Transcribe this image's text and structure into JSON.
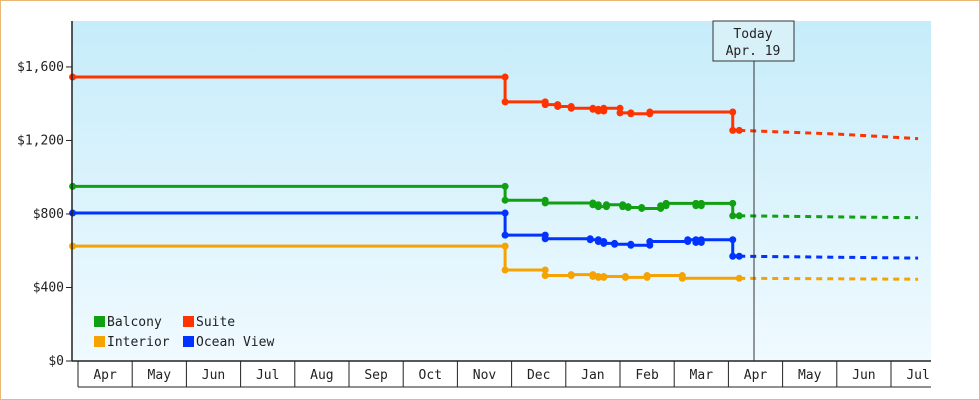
{
  "chart_data": {
    "type": "line",
    "title": "",
    "xlabel": "",
    "ylabel": "",
    "ylim": [
      0,
      1850
    ],
    "yticks": [
      0,
      400,
      800,
      1200,
      1600
    ],
    "ytick_labels": [
      "$0",
      "$400",
      "$800",
      "$1,200",
      "$1,600"
    ],
    "x_months": [
      "Apr",
      "May",
      "Jun",
      "Jul",
      "Aug",
      "Sep",
      "Oct",
      "Nov",
      "Dec",
      "Jan",
      "Feb",
      "Mar",
      "Apr",
      "May",
      "Jun",
      "Jul"
    ],
    "x_axis_unit": "months since first Apr (0 = start of Apr)",
    "today": {
      "line1": "Today",
      "line2": "Apr. 19",
      "x": 12.2
    },
    "legend_position": "bottom-left",
    "grid": false,
    "series": [
      {
        "name": "Balcony",
        "color": "#11a011",
        "points": [
          [
            -0.1,
            950
          ],
          [
            7.85,
            950
          ],
          [
            7.88,
            875
          ],
          [
            8.6,
            875
          ],
          [
            8.62,
            860
          ],
          [
            9.5,
            850
          ],
          [
            9.6,
            840
          ],
          [
            9.75,
            850
          ],
          [
            10.05,
            840
          ],
          [
            10.15,
            835
          ],
          [
            10.4,
            830
          ],
          [
            10.7,
            830
          ],
          [
            10.75,
            845
          ],
          [
            10.85,
            858
          ],
          [
            11.35,
            858
          ],
          [
            11.4,
            845
          ],
          [
            11.5,
            858
          ],
          [
            12.05,
            858
          ],
          [
            12.08,
            790
          ],
          [
            12.2,
            790
          ]
        ],
        "forecast": [
          [
            12.2,
            790
          ],
          [
            14.7,
            782
          ],
          [
            15.5,
            780
          ]
        ]
      },
      {
        "name": "Suite",
        "color": "#ff3300",
        "points": [
          [
            -0.1,
            1545
          ],
          [
            7.85,
            1545
          ],
          [
            7.88,
            1410
          ],
          [
            8.6,
            1410
          ],
          [
            8.62,
            1395
          ],
          [
            8.85,
            1385
          ],
          [
            9.1,
            1375
          ],
          [
            9.5,
            1370
          ],
          [
            9.6,
            1360
          ],
          [
            9.7,
            1375
          ],
          [
            9.95,
            1375
          ],
          [
            10.0,
            1350
          ],
          [
            10.2,
            1345
          ],
          [
            10.5,
            1345
          ],
          [
            10.55,
            1355
          ],
          [
            12.05,
            1355
          ],
          [
            12.08,
            1255
          ],
          [
            12.2,
            1255
          ]
        ],
        "forecast": [
          [
            12.2,
            1255
          ],
          [
            14.0,
            1235
          ],
          [
            15.5,
            1210
          ]
        ]
      },
      {
        "name": "Interior",
        "color": "#f5a300",
        "points": [
          [
            -0.1,
            625
          ],
          [
            7.85,
            625
          ],
          [
            7.88,
            495
          ],
          [
            8.6,
            495
          ],
          [
            8.62,
            465
          ],
          [
            8.9,
            465
          ],
          [
            9.1,
            470
          ],
          [
            9.5,
            460
          ],
          [
            9.6,
            455
          ],
          [
            9.7,
            460
          ],
          [
            9.95,
            460
          ],
          [
            10.1,
            455
          ],
          [
            10.45,
            455
          ],
          [
            10.5,
            465
          ],
          [
            11.1,
            465
          ],
          [
            11.15,
            450
          ],
          [
            12.05,
            450
          ],
          [
            12.2,
            450
          ]
        ],
        "forecast": [
          [
            12.2,
            450
          ],
          [
            15.5,
            445
          ]
        ]
      },
      {
        "name": "Ocean View",
        "color": "#0033ff",
        "points": [
          [
            -0.1,
            805
          ],
          [
            7.85,
            805
          ],
          [
            7.88,
            685
          ],
          [
            8.6,
            685
          ],
          [
            8.62,
            665
          ],
          [
            9.45,
            660
          ],
          [
            9.6,
            650
          ],
          [
            9.7,
            640
          ],
          [
            9.9,
            635
          ],
          [
            10.1,
            635
          ],
          [
            10.2,
            630
          ],
          [
            10.45,
            630
          ],
          [
            10.55,
            650
          ],
          [
            11.2,
            650
          ],
          [
            11.25,
            660
          ],
          [
            11.4,
            645
          ],
          [
            11.5,
            660
          ],
          [
            12.05,
            660
          ],
          [
            12.08,
            570
          ],
          [
            12.2,
            570
          ]
        ],
        "forecast": [
          [
            12.2,
            570
          ],
          [
            15.5,
            560
          ]
        ]
      }
    ],
    "legend": [
      {
        "name": "Balcony",
        "color": "#11a011"
      },
      {
        "name": "Suite",
        "color": "#ff3300"
      },
      {
        "name": "Interior",
        "color": "#f5a300"
      },
      {
        "name": "Ocean View",
        "color": "#0033ff"
      }
    ]
  }
}
